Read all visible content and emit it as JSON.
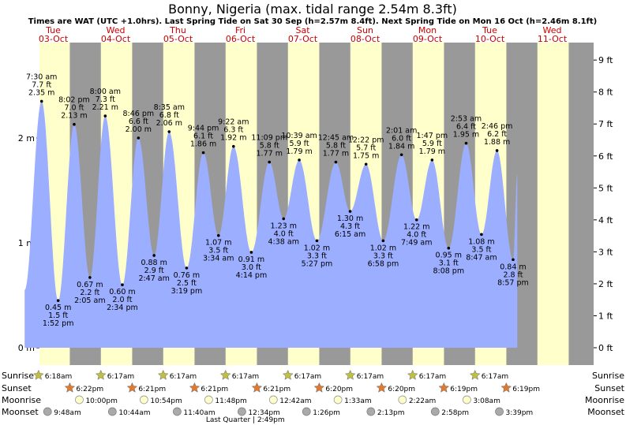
{
  "chart_data": {
    "type": "area",
    "title": "Bonny, Nigeria (max. tidal range 2.54m 8.3ft)",
    "subtitle": "Times are WAT (UTC +1.0hrs). Last Spring Tide on Sat 30 Sep (h=2.57m 8.4ft). Next Spring Tide on Mon 16 Oct (h=2.46m 8.1ft)",
    "days": [
      {
        "name": "Tue",
        "date": "03-Oct"
      },
      {
        "name": "Wed",
        "date": "04-Oct"
      },
      {
        "name": "Thu",
        "date": "05-Oct"
      },
      {
        "name": "Fri",
        "date": "06-Oct"
      },
      {
        "name": "Sat",
        "date": "07-Oct"
      },
      {
        "name": "Sun",
        "date": "08-Oct"
      },
      {
        "name": "Mon",
        "date": "09-Oct"
      },
      {
        "name": "Tue",
        "date": "10-Oct"
      },
      {
        "name": "Wed",
        "date": "11-Oct"
      }
    ],
    "y_left": {
      "unit": "m",
      "range": [
        -0.05,
        2.95
      ],
      "ticks": [
        "0 m",
        "1 m",
        "2 m"
      ]
    },
    "y_right": {
      "unit": "ft",
      "ticks": [
        "0 ft",
        "1 ft",
        "2 ft",
        "3 ft",
        "4 ft",
        "5 ft",
        "6 ft",
        "7 ft",
        "8 ft",
        "9 ft"
      ]
    },
    "extremes": [
      {
        "time": "7:30 am",
        "ft": "7.7 ft",
        "m": "2.35 m",
        "t": 0.313,
        "h": 2.35,
        "type": "high"
      },
      {
        "time": "1:52 pm",
        "ft": "1.5 ft",
        "m": "0.45 m",
        "t": 0.578,
        "h": 0.45,
        "type": "low"
      },
      {
        "time": "8:02 pm",
        "ft": "7.0 ft",
        "m": "2.13 m",
        "t": 0.835,
        "h": 2.13,
        "type": "high"
      },
      {
        "time": "2:05 am",
        "ft": "2.2 ft",
        "m": "0.67 m",
        "t": 1.087,
        "h": 0.67,
        "type": "low"
      },
      {
        "time": "8:00 am",
        "ft": "7.3 ft",
        "m": "2.21 m",
        "t": 1.333,
        "h": 2.21,
        "type": "high"
      },
      {
        "time": "2:34 pm",
        "ft": "2.0 ft",
        "m": "0.60 m",
        "t": 1.607,
        "h": 0.6,
        "type": "low"
      },
      {
        "time": "8:46 pm",
        "ft": "6.6 ft",
        "m": "2.00 m",
        "t": 1.865,
        "h": 2.0,
        "type": "high"
      },
      {
        "time": "2:47 am",
        "ft": "2.9 ft",
        "m": "0.88 m",
        "t": 2.116,
        "h": 0.88,
        "type": "low"
      },
      {
        "time": "8:35 am",
        "ft": "6.8 ft",
        "m": "2.06 m",
        "t": 2.358,
        "h": 2.06,
        "type": "high"
      },
      {
        "time": "3:19 pm",
        "ft": "2.5 ft",
        "m": "0.76 m",
        "t": 2.638,
        "h": 0.76,
        "type": "low"
      },
      {
        "time": "9:44 pm",
        "ft": "6.1 ft",
        "m": "1.86 m",
        "t": 2.906,
        "h": 1.86,
        "type": "high"
      },
      {
        "time": "3:34 am",
        "ft": "3.5 ft",
        "m": "1.07 m",
        "t": 3.149,
        "h": 1.07,
        "type": "low"
      },
      {
        "time": "9:22 am",
        "ft": "6.3 ft",
        "m": "1.92 m",
        "t": 3.39,
        "h": 1.92,
        "type": "high"
      },
      {
        "time": "4:14 pm",
        "ft": "3.0 ft",
        "m": "0.91 m",
        "t": 3.676,
        "h": 0.91,
        "type": "low"
      },
      {
        "time": "11:09 pm",
        "ft": "5.8 ft",
        "m": "1.77 m",
        "t": 3.965,
        "h": 1.77,
        "type": "high"
      },
      {
        "time": "4:38 am",
        "ft": "4.0 ft",
        "m": "1.23 m",
        "t": 4.193,
        "h": 1.23,
        "type": "low"
      },
      {
        "time": "10:39 am",
        "ft": "5.9 ft",
        "m": "1.79 m",
        "t": 4.444,
        "h": 1.79,
        "type": "high"
      },
      {
        "time": "5:27 pm",
        "ft": "3.3 ft",
        "m": "1.02 m",
        "t": 4.727,
        "h": 1.02,
        "type": "low"
      },
      {
        "time": "12:45 am",
        "ft": "5.8 ft",
        "m": "1.77 m",
        "t": 5.031,
        "h": 1.77,
        "type": "high"
      },
      {
        "time": "6:15 am",
        "ft": "4.3 ft",
        "m": "1.30 m",
        "t": 5.26,
        "h": 1.3,
        "type": "low"
      },
      {
        "time": "12:22 pm",
        "ft": "5.7 ft",
        "m": "1.75 m",
        "t": 5.515,
        "h": 1.75,
        "type": "high"
      },
      {
        "time": "6:58 pm",
        "ft": "3.3 ft",
        "m": "1.02 m",
        "t": 5.79,
        "h": 1.02,
        "type": "low"
      },
      {
        "time": "2:01 am",
        "ft": "6.0 ft",
        "m": "1.84 m",
        "t": 6.084,
        "h": 1.84,
        "type": "high"
      },
      {
        "time": "7:49 am",
        "ft": "4.0 ft",
        "m": "1.22 m",
        "t": 6.326,
        "h": 1.22,
        "type": "low"
      },
      {
        "time": "1:47 pm",
        "ft": "5.9 ft",
        "m": "1.79 m",
        "t": 6.574,
        "h": 1.79,
        "type": "high"
      },
      {
        "time": "8:08 pm",
        "ft": "3.1 ft",
        "m": "0.95 m",
        "t": 6.839,
        "h": 0.95,
        "type": "low"
      },
      {
        "time": "2:53 am",
        "ft": "6.4 ft",
        "m": "1.95 m",
        "t": 7.12,
        "h": 1.95,
        "type": "high"
      },
      {
        "time": "8:47 am",
        "ft": "3.5 ft",
        "m": "1.08 m",
        "t": 7.366,
        "h": 1.08,
        "type": "low"
      },
      {
        "time": "2:46 pm",
        "ft": "6.2 ft",
        "m": "1.88 m",
        "t": 7.615,
        "h": 1.88,
        "type": "high"
      },
      {
        "time": "8:57 pm",
        "ft": "2.8 ft",
        "m": "0.84 m",
        "t": 7.873,
        "h": 0.84,
        "type": "low"
      }
    ],
    "curve_start": {
      "t": 0.04,
      "h": 0.55
    },
    "curve_end": {
      "t": 7.94,
      "h": 1.65
    },
    "sun": {
      "sunrise_t": 0.263,
      "sunset_t": 0.765
    },
    "rows": {
      "labels": [
        "Sunrise",
        "Sunset",
        "Moonrise",
        "Moonset"
      ],
      "sunrise": [
        {
          "label": "6:18am",
          "t": 0.263
        },
        {
          "label": "6:17am",
          "t": 1.262
        },
        {
          "label": "6:17am",
          "t": 2.262
        },
        {
          "label": "6:17am",
          "t": 3.262
        },
        {
          "label": "6:17am",
          "t": 4.262
        },
        {
          "label": "6:17am",
          "t": 5.262
        },
        {
          "label": "6:17am",
          "t": 6.262
        },
        {
          "label": "6:17am",
          "t": 7.262
        }
      ],
      "sunset": [
        {
          "label": "6:22pm",
          "t": 0.765
        },
        {
          "label": "6:21pm",
          "t": 1.765
        },
        {
          "label": "6:21pm",
          "t": 2.765
        },
        {
          "label": "6:21pm",
          "t": 3.765
        },
        {
          "label": "6:20pm",
          "t": 4.764
        },
        {
          "label": "6:20pm",
          "t": 5.764
        },
        {
          "label": "6:19pm",
          "t": 6.763
        },
        {
          "label": "6:19pm",
          "t": 7.763
        }
      ],
      "moonrise": [
        {
          "label": "10:00pm",
          "t": 0.917
        },
        {
          "label": "10:54pm",
          "t": 1.954
        },
        {
          "label": "11:48pm",
          "t": 2.992
        },
        {
          "label": "12:42am",
          "t": 4.029
        },
        {
          "label": "1:33am",
          "t": 5.065
        },
        {
          "label": "2:22am",
          "t": 6.099
        },
        {
          "label": "3:08am",
          "t": 7.131
        }
      ],
      "moonset": [
        {
          "label": "9:48am",
          "t": 0.408
        },
        {
          "label": "10:44am",
          "t": 1.447
        },
        {
          "label": "11:40am",
          "t": 2.486
        },
        {
          "label": "12:34pm",
          "t": 3.524
        },
        {
          "label": "1:26pm",
          "t": 4.56
        },
        {
          "label": "2:13pm",
          "t": 5.593
        },
        {
          "label": "2:58pm",
          "t": 6.624
        },
        {
          "label": "3:39pm",
          "t": 7.652
        }
      ],
      "phase": {
        "label": "Last Quarter | 2:49pm",
        "t": 3.617
      }
    },
    "colors": {
      "night": "#999999",
      "day": "#ffffcc",
      "water": "#9caeff",
      "sunrise_star": "#bfbf40",
      "sunset_star": "#e07a2f",
      "moonrise": "#ffffcc",
      "moonset": "#aaaaaa",
      "day_label": "#cc0000"
    }
  }
}
